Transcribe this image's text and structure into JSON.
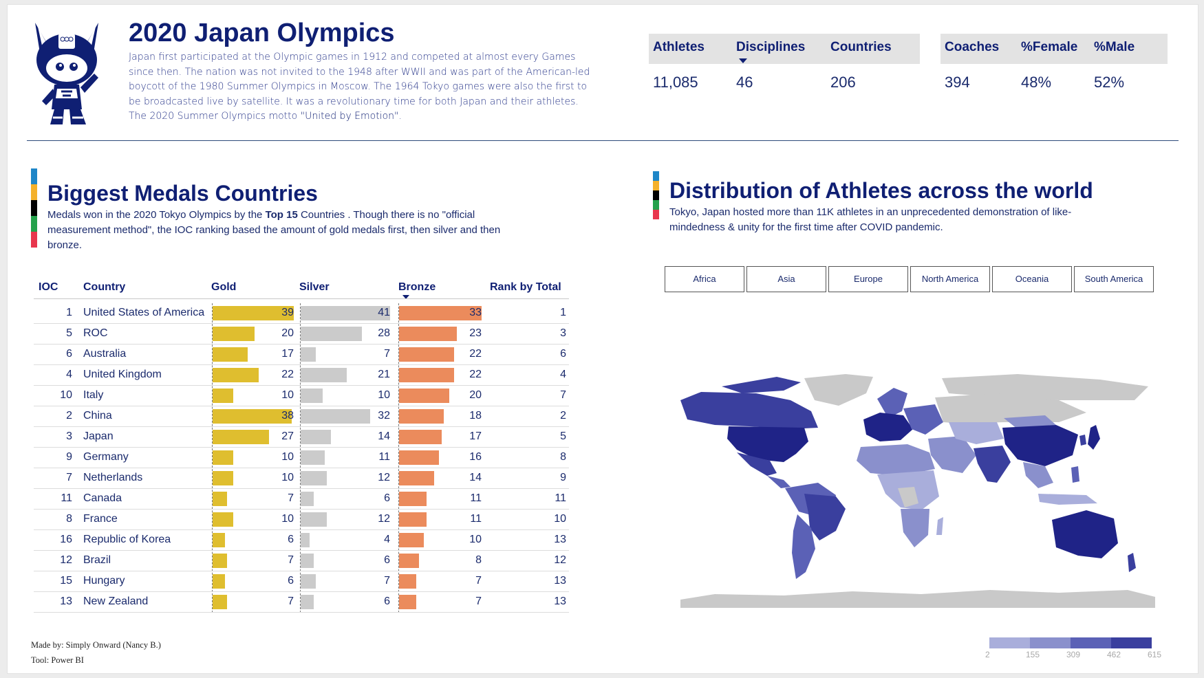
{
  "header": {
    "title": "2020 Japan Olympics",
    "intro_text": "Japan first participated at the Olympic games in 1912 and competed at almost every Games since then. The nation was not invited to the 1948 after WWII and was part of the American-led boycott of the 1980 Summer Olympics in Moscow. The 1964 Tokyo games were also the first to be broadcasted live by satellite. It was a revolutionary time for both Japan and their athletes.  The 2020 Summer Olympics motto ",
    "motto": "\"United by Emotion\"",
    "intro_end": "."
  },
  "kpis": [
    {
      "label": "Athletes",
      "value": "11,085"
    },
    {
      "label": "Disciplines",
      "value": "46"
    },
    {
      "label": "Countries",
      "value": "206"
    },
    {
      "label": "Coaches",
      "value": "394"
    },
    {
      "label": "%Female",
      "value": "48%"
    },
    {
      "label": "%Male",
      "value": "52%"
    }
  ],
  "medals_section": {
    "title": "Biggest Medals Countries",
    "desc_before": "Medals won in the 2020 Tokyo Olympics by the ",
    "desc_bold": "Top 15",
    "desc_after": " Countries . Though there is no \"official measurement method\", the IOC ranking based the amount of gold medals first, then silver and then bronze."
  },
  "table": {
    "columns": {
      "ioc": "IOC",
      "country": "Country",
      "gold": "Gold",
      "silver": "Silver",
      "bronze": "Bronze",
      "rank": "Rank by Total"
    },
    "max_gold": 39,
    "max_silver": 41,
    "max_bronze": 33,
    "rows": [
      {
        "ioc": "1",
        "country": "United States of America",
        "gold": 39,
        "silver": 41,
        "bronze": 33,
        "rank": "1"
      },
      {
        "ioc": "5",
        "country": "ROC",
        "gold": 20,
        "silver": 28,
        "bronze": 23,
        "rank": "3"
      },
      {
        "ioc": "6",
        "country": "Australia",
        "gold": 17,
        "silver": 7,
        "bronze": 22,
        "rank": "6"
      },
      {
        "ioc": "4",
        "country": "United Kingdom",
        "gold": 22,
        "silver": 21,
        "bronze": 22,
        "rank": "4"
      },
      {
        "ioc": "10",
        "country": "Italy",
        "gold": 10,
        "silver": 10,
        "bronze": 20,
        "rank": "7"
      },
      {
        "ioc": "2",
        "country": "China",
        "gold": 38,
        "silver": 32,
        "bronze": 18,
        "rank": "2"
      },
      {
        "ioc": "3",
        "country": "Japan",
        "gold": 27,
        "silver": 14,
        "bronze": 17,
        "rank": "5"
      },
      {
        "ioc": "9",
        "country": "Germany",
        "gold": 10,
        "silver": 11,
        "bronze": 16,
        "rank": "8"
      },
      {
        "ioc": "7",
        "country": "Netherlands",
        "gold": 10,
        "silver": 12,
        "bronze": 14,
        "rank": "9"
      },
      {
        "ioc": "11",
        "country": "Canada",
        "gold": 7,
        "silver": 6,
        "bronze": 11,
        "rank": "11"
      },
      {
        "ioc": "8",
        "country": "France",
        "gold": 10,
        "silver": 12,
        "bronze": 11,
        "rank": "10"
      },
      {
        "ioc": "16",
        "country": "Republic of Korea",
        "gold": 6,
        "silver": 4,
        "bronze": 10,
        "rank": "13"
      },
      {
        "ioc": "12",
        "country": "Brazil",
        "gold": 7,
        "silver": 6,
        "bronze": 8,
        "rank": "12"
      },
      {
        "ioc": "15",
        "country": "Hungary",
        "gold": 6,
        "silver": 7,
        "bronze": 7,
        "rank": "13"
      },
      {
        "ioc": "13",
        "country": "New Zealand",
        "gold": 7,
        "silver": 6,
        "bronze": 7,
        "rank": "13"
      }
    ]
  },
  "map_section": {
    "title": "Distribution of Athletes across the world",
    "desc": "Tokyo, Japan hosted more than 11K athletes in an unprecedented demonstration of like-mindedness & unity for the first time after COVID pandemic.",
    "filters": [
      "Africa",
      "Asia",
      "Europe",
      "North America",
      "Oceania",
      "South America"
    ],
    "legend": {
      "labels": [
        "2",
        "155",
        "309",
        "462",
        "615"
      ],
      "colors": [
        "#a9aedb",
        "#8a90cc",
        "#5b61b6",
        "#3a3f9e",
        "#1f2387"
      ]
    }
  },
  "colors": {
    "gold": "#dfbe2f",
    "silver": "#cbcbcb",
    "bronze": "#eb8b5c",
    "olympic_stripe": [
      "#1e86c8",
      "#f4b12b",
      "#000000",
      "#24a14b",
      "#e8364d"
    ],
    "map_no_data": "#c9c9c9"
  },
  "footer": {
    "made_by": "Made by: Simply Onward (Nancy B.)",
    "tool": "Tool: Power BI"
  }
}
